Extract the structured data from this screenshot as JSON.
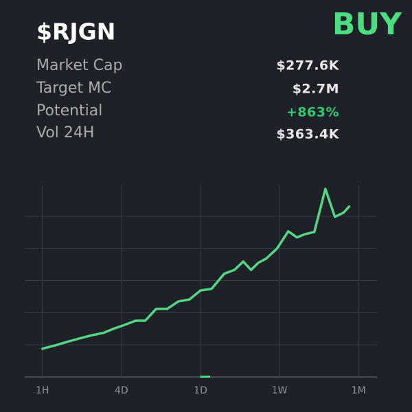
{
  "header": {
    "ticker": "$RJGN",
    "signal": "BUY"
  },
  "stats": [
    {
      "label": "Market Cap",
      "value": "$277.6K"
    },
    {
      "label": "Target MC",
      "value": "$2.7M"
    },
    {
      "label": "Potential",
      "value": "+863%"
    },
    {
      "label": "Vol 24H",
      "value": "$363.4K"
    }
  ],
  "chart_data": {
    "type": "line",
    "x": [
      0,
      0.16,
      0.31,
      0.47,
      0.63,
      0.77,
      0.9,
      1.04,
      1.18,
      1.3,
      1.44,
      1.58,
      1.72,
      1.86,
      2.0,
      2.14,
      2.3,
      2.43,
      2.54,
      2.64,
      2.73,
      2.83,
      2.97,
      3.11,
      3.22,
      3.32,
      3.44,
      3.58,
      3.7,
      3.81,
      3.88
    ],
    "series": [
      {
        "color": "#55d682",
        "values": [
          0.88,
          0.98,
          1.09,
          1.2,
          1.3,
          1.37,
          1.5,
          1.62,
          1.75,
          1.75,
          2.12,
          2.12,
          2.35,
          2.41,
          2.69,
          2.74,
          3.21,
          3.33,
          3.59,
          3.33,
          3.55,
          3.68,
          4.0,
          4.53,
          4.34,
          4.44,
          4.51,
          5.85,
          4.98,
          5.11,
          5.3
        ]
      }
    ],
    "xlim": [
      -0.25,
      4.25
    ],
    "xticks": [
      {
        "value": 0,
        "label": "1H"
      },
      {
        "value": 1,
        "label": "4D"
      },
      {
        "value": 2,
        "label": "1D"
      },
      {
        "value": 3,
        "label": "1W"
      },
      {
        "value": 4,
        "label": "1M"
      }
    ],
    "ylim": [
      0,
      6
    ],
    "yticks": [
      1,
      2,
      3,
      4,
      5
    ],
    "grid": true
  }
}
